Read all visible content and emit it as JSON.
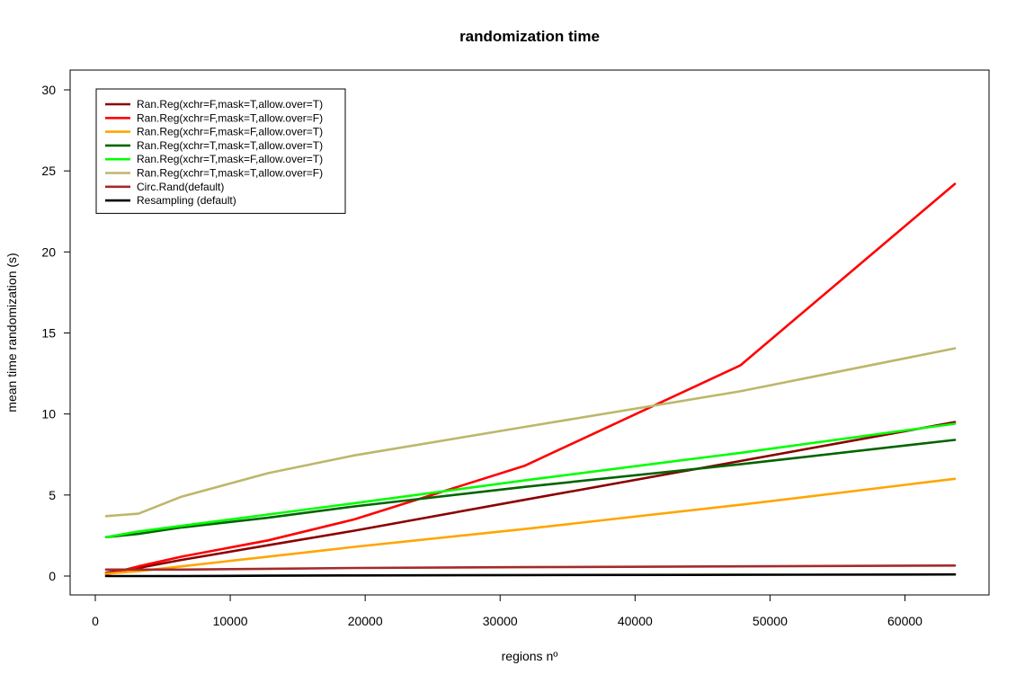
{
  "chart_data": {
    "type": "line",
    "title": "randomization time",
    "xlabel": "regions nº",
    "ylabel": "mean time randomization (s)",
    "xlim": [
      0,
      65000
    ],
    "ylim": [
      0,
      30
    ],
    "xticks": [
      0,
      10000,
      20000,
      30000,
      40000,
      50000,
      60000
    ],
    "yticks": [
      0,
      5,
      10,
      15,
      20,
      25,
      30
    ],
    "xtick_labels": [
      "0",
      "10000",
      "20000",
      "30000",
      "40000",
      "50000",
      "60000"
    ],
    "ytick_labels": [
      "0",
      "5",
      "10",
      "15",
      "20",
      "25",
      "30"
    ],
    "grid": false,
    "legend_position": "top-left",
    "series": [
      {
        "name": "Ran.Reg(xchr=F,mask=T,allow.over=T)",
        "color": "#8b0000",
        "x": [
          800,
          3200,
          6400,
          12800,
          19200,
          31800,
          47800,
          63700
        ],
        "y": [
          0.2,
          0.5,
          1.0,
          1.9,
          2.8,
          4.7,
          7.1,
          9.5
        ]
      },
      {
        "name": "Ran.Reg(xchr=F,mask=T,allow.over=F)",
        "color": "#ff0000",
        "x": [
          800,
          3200,
          6400,
          12800,
          19200,
          31800,
          47800,
          63700
        ],
        "y": [
          0.1,
          0.6,
          1.2,
          2.2,
          3.5,
          6.8,
          13.0,
          24.2
        ]
      },
      {
        "name": "Ran.Reg(xchr=F,mask=F,allow.over=T)",
        "color": "#ffa500",
        "x": [
          800,
          3200,
          6400,
          12800,
          19200,
          31800,
          47800,
          63700
        ],
        "y": [
          0.15,
          0.3,
          0.6,
          1.2,
          1.8,
          2.9,
          4.4,
          6.0
        ]
      },
      {
        "name": "Ran.Reg(xchr=T,mask=T,allow.over=T)",
        "color": "#006400",
        "x": [
          800,
          3200,
          6400,
          12800,
          19200,
          31800,
          47800,
          63700
        ],
        "y": [
          2.4,
          2.6,
          3.0,
          3.6,
          4.3,
          5.5,
          6.9,
          8.4
        ]
      },
      {
        "name": "Ran.Reg(xchr=T,mask=F,allow.over=T)",
        "color": "#00ff00",
        "x": [
          800,
          3200,
          6400,
          12800,
          19200,
          31800,
          47800,
          63700
        ],
        "y": [
          2.4,
          2.75,
          3.1,
          3.8,
          4.5,
          5.9,
          7.6,
          9.4
        ]
      },
      {
        "name": "Ran.Reg(xchr=T,mask=T,allow.over=F)",
        "color": "#bdb76b",
        "x": [
          800,
          3200,
          6400,
          12800,
          19200,
          31800,
          47800,
          63700
        ],
        "y": [
          3.7,
          3.85,
          4.9,
          6.35,
          7.45,
          9.2,
          11.4,
          14.05
        ]
      },
      {
        "name": "Circ.Rand(default)",
        "color": "#a52a2a",
        "x": [
          800,
          3200,
          6400,
          12800,
          19200,
          31800,
          47800,
          63700
        ],
        "y": [
          0.4,
          0.4,
          0.4,
          0.45,
          0.5,
          0.55,
          0.6,
          0.65
        ]
      },
      {
        "name": "Resampling (default)",
        "color": "#000000",
        "x": [
          800,
          3200,
          6400,
          12800,
          19200,
          31800,
          47800,
          63700
        ],
        "y": [
          0.0,
          0.0,
          0.0,
          0.02,
          0.04,
          0.06,
          0.08,
          0.1
        ]
      }
    ]
  }
}
